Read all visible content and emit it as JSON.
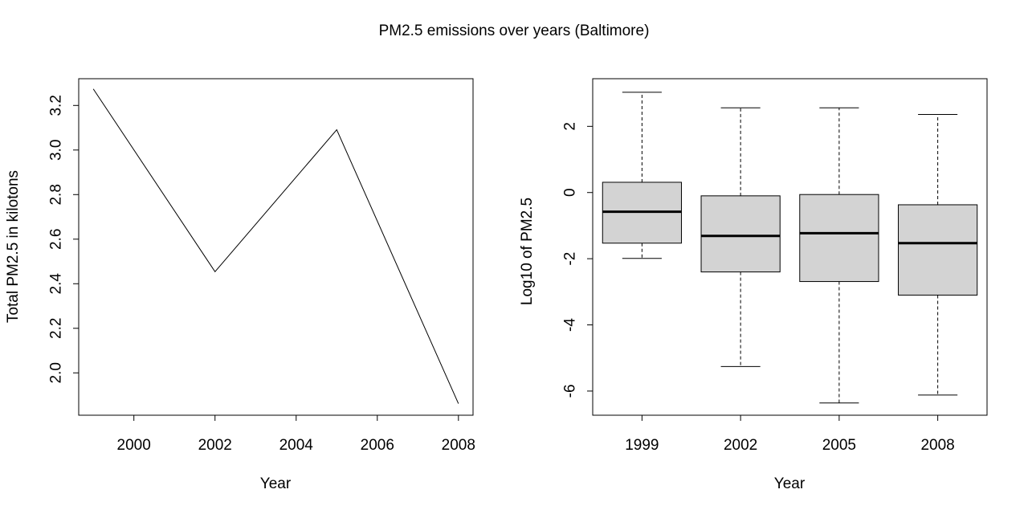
{
  "title": "PM2.5 emissions over years (Baltimore)",
  "chart_data": [
    {
      "type": "line",
      "xlabel": "Year",
      "ylabel": "Total PM2.5 in kilotons",
      "x": [
        1999,
        2002,
        2005,
        2008
      ],
      "y": [
        3.274,
        2.454,
        3.091,
        1.862
      ],
      "xlim": [
        1998.64,
        2008.36
      ],
      "ylim": [
        1.81,
        3.32
      ],
      "xticks": [
        "2000",
        "2002",
        "2004",
        "2006",
        "2008"
      ],
      "yticks": [
        "2.0",
        "2.2",
        "2.4",
        "2.6",
        "2.8",
        "3.0",
        "3.2"
      ],
      "color": "#000000"
    },
    {
      "type": "boxplot",
      "xlabel": "Year",
      "ylabel": "Log10 of PM2.5",
      "categories": [
        "1999",
        "2002",
        "2005",
        "2008"
      ],
      "ylim": [
        -6.73,
        3.44
      ],
      "yticks": [
        "-6",
        "-4",
        "-2",
        "0",
        "2"
      ],
      "boxes": [
        {
          "whisker_low": -1.99,
          "q1": -1.53,
          "median": -0.58,
          "q3": 0.31,
          "whisker_high": 3.03
        },
        {
          "whisker_low": -5.26,
          "q1": -2.4,
          "median": -1.31,
          "q3": -0.1,
          "whisker_high": 2.56
        },
        {
          "whisker_low": -6.36,
          "q1": -2.69,
          "median": -1.23,
          "q3": -0.06,
          "whisker_high": 2.56
        },
        {
          "whisker_low": -6.12,
          "q1": -3.1,
          "median": -1.53,
          "q3": -0.37,
          "whisker_high": 2.36
        }
      ],
      "box_fill": "#d3d3d3",
      "stroke": "#000000"
    }
  ]
}
